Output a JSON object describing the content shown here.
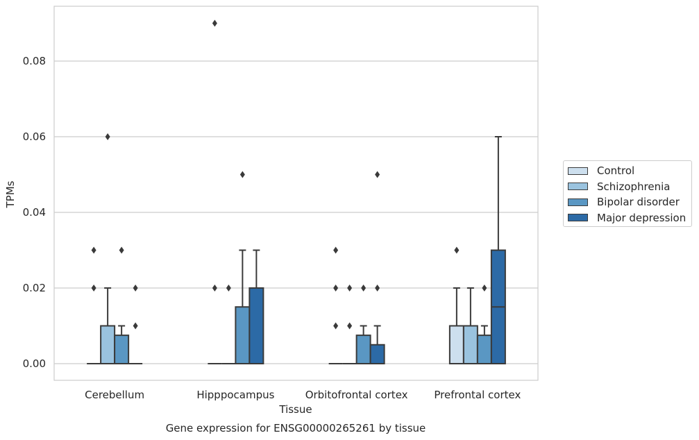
{
  "chart_data": {
    "type": "box",
    "title": "",
    "caption": "Gene expression for ENSG00000265261 by tissue",
    "xlabel": "Tissue",
    "ylabel": "TPMs",
    "ylim": [
      -0.0045,
      0.0945
    ],
    "yticks": [
      0.0,
      0.02,
      0.04,
      0.06,
      0.08
    ],
    "ytick_labels": [
      "0.00",
      "0.02",
      "0.04",
      "0.06",
      "0.08"
    ],
    "grid": "horizontal",
    "legend_position": "right",
    "categories": [
      "Cerebellum",
      "Hipppocampus",
      "Orbitofrontal cortex",
      "Prefrontal cortex"
    ],
    "series": [
      {
        "name": "Control",
        "color": "#cddfee",
        "boxes": [
          {
            "q1": 0,
            "median": 0,
            "q3": 0,
            "whisker_low": 0,
            "whisker_high": 0,
            "outliers": [
              0.02,
              0.03
            ]
          },
          {
            "q1": 0,
            "median": 0,
            "q3": 0,
            "whisker_low": 0,
            "whisker_high": 0,
            "outliers": [
              0.02,
              0.09
            ]
          },
          {
            "q1": 0,
            "median": 0,
            "q3": 0,
            "whisker_low": 0,
            "whisker_high": 0,
            "outliers": [
              0.01,
              0.02,
              0.03
            ]
          },
          {
            "q1": 0,
            "median": 0,
            "q3": 0.01,
            "whisker_low": 0,
            "whisker_high": 0.02,
            "outliers": [
              0.03
            ]
          }
        ]
      },
      {
        "name": "Schizophrenia",
        "color": "#9ac3df",
        "boxes": [
          {
            "q1": 0,
            "median": 0,
            "q3": 0.01,
            "whisker_low": 0,
            "whisker_high": 0.02,
            "outliers": [
              0.06
            ]
          },
          {
            "q1": 0,
            "median": 0,
            "q3": 0,
            "whisker_low": 0,
            "whisker_high": 0,
            "outliers": [
              0.02
            ]
          },
          {
            "q1": 0,
            "median": 0,
            "q3": 0,
            "whisker_low": 0,
            "whisker_high": 0,
            "outliers": [
              0.01,
              0.02
            ]
          },
          {
            "q1": 0,
            "median": 0,
            "q3": 0.01,
            "whisker_low": 0,
            "whisker_high": 0.02,
            "outliers": []
          }
        ]
      },
      {
        "name": "Bipolar disorder",
        "color": "#5a97c3",
        "boxes": [
          {
            "q1": 0,
            "median": 0,
            "q3": 0.0075,
            "whisker_low": 0,
            "whisker_high": 0.01,
            "outliers": [
              0.03
            ]
          },
          {
            "q1": 0,
            "median": 0,
            "q3": 0.015,
            "whisker_low": 0,
            "whisker_high": 0.03,
            "outliers": [
              0.05
            ]
          },
          {
            "q1": 0,
            "median": 0,
            "q3": 0.0075,
            "whisker_low": 0,
            "whisker_high": 0.01,
            "outliers": [
              0.02
            ]
          },
          {
            "q1": 0,
            "median": 0,
            "q3": 0.0075,
            "whisker_low": 0,
            "whisker_high": 0.01,
            "outliers": [
              0.02
            ]
          }
        ]
      },
      {
        "name": "Major depression",
        "color": "#2c6aa6",
        "boxes": [
          {
            "q1": 0,
            "median": 0,
            "q3": 0,
            "whisker_low": 0,
            "whisker_high": 0,
            "outliers": [
              0.01,
              0.02
            ]
          },
          {
            "q1": 0,
            "median": 0,
            "q3": 0.02,
            "whisker_low": 0,
            "whisker_high": 0.03,
            "outliers": []
          },
          {
            "q1": 0,
            "median": 0,
            "q3": 0.005,
            "whisker_low": 0,
            "whisker_high": 0.01,
            "outliers": [
              0.02,
              0.05
            ]
          },
          {
            "q1": 0,
            "median": 0.015,
            "q3": 0.03,
            "whisker_low": 0,
            "whisker_high": 0.06,
            "outliers": []
          }
        ]
      }
    ]
  }
}
